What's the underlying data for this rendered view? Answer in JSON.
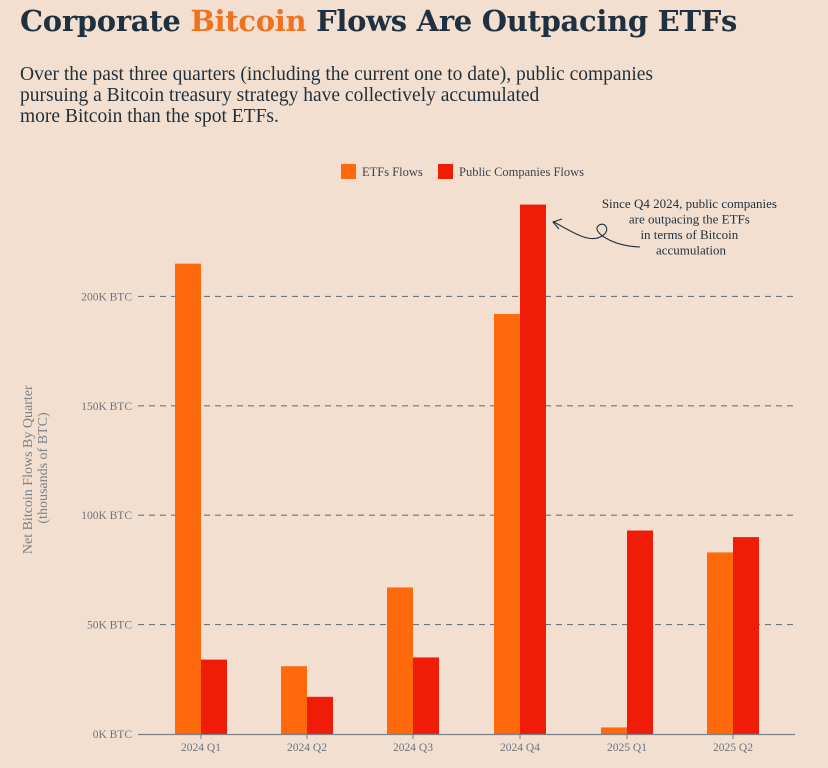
{
  "header": {
    "title_pre": "Corporate ",
    "title_highlight": "Bitcoin",
    "title_post": " Flows Are Outpacing ETFs",
    "subtitle_lines": [
      "Over the past three quarters (including the current one to date), public companies",
      "pursuing a Bitcoin treasury strategy have collectively accumulated",
      "more Bitcoin than the spot ETFs."
    ]
  },
  "colors": {
    "etf": "#fe6a0b",
    "companies": "#ef1c08",
    "grid": "#6e767d",
    "highlight": "#f0711e"
  },
  "chart_data": {
    "type": "bar",
    "title": "Corporate Bitcoin Flows Are Outpacing ETFs",
    "ylabel_lines": [
      "Net Bitcoin Flows By Quarter",
      "(thousands of BTC)"
    ],
    "xlabel": "",
    "categories": [
      "2024 Q1",
      "2024 Q2",
      "2024 Q3",
      "2024 Q4",
      "2025 Q1",
      "2025 Q2"
    ],
    "series": [
      {
        "name": "ETFs Flows",
        "values": [
          215,
          31,
          67,
          192,
          3,
          83
        ]
      },
      {
        "name": "Public Companies Flows",
        "values": [
          34,
          17,
          35,
          242,
          93,
          90
        ]
      }
    ],
    "ylim": [
      0,
      245
    ],
    "yticks": [
      0,
      50,
      100,
      150,
      200
    ],
    "ytick_labels": [
      "0K BTC",
      "50K BTC",
      "100K BTC",
      "150K BTC",
      "200K BTC"
    ],
    "grid": true,
    "legend": "top-center",
    "annotation": {
      "lines": [
        "Since Q4 2024, public companies",
        "are outpacing the ETFs",
        "in terms of Bitcoin",
        "accumulation"
      ],
      "target_category": "2024 Q4",
      "target_series": "Public Companies Flows"
    }
  }
}
